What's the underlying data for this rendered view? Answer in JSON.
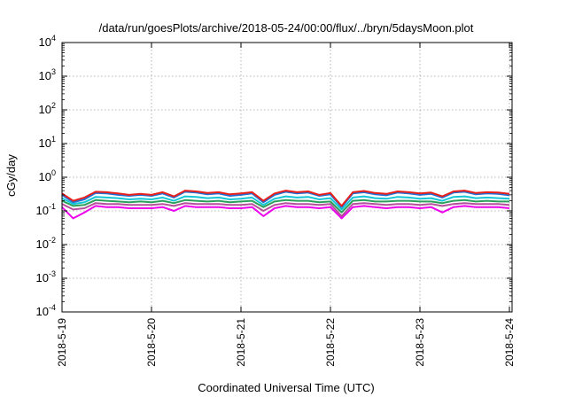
{
  "chart_data": {
    "type": "line",
    "title": "/data/run/goesPlots/archive/2018-05-24/00:00/flux/../bryn/5daysMoon.plot",
    "xlabel": "Coordinated Universal Time (UTC)",
    "ylabel": "cGy/day",
    "yscale": "log",
    "ylim": [
      0.0001,
      10000
    ],
    "xlim": [
      "2018-05-19",
      "2018-05-24"
    ],
    "grid": true,
    "x_ticks": [
      "2018-5-19",
      "2018-5-20",
      "2018-5-21",
      "2018-5-22",
      "2018-5-23",
      "2018-5-24"
    ],
    "y_ticks": [
      {
        "base": "10",
        "exp": "4"
      },
      {
        "base": "10",
        "exp": "3"
      },
      {
        "base": "10",
        "exp": "2"
      },
      {
        "base": "10",
        "exp": "1"
      },
      {
        "base": "10",
        "exp": "0"
      },
      {
        "base": "10",
        "exp": "-1"
      },
      {
        "base": "10",
        "exp": "-2"
      },
      {
        "base": "10",
        "exp": "-3"
      },
      {
        "base": "10",
        "exp": "-4"
      }
    ],
    "x": [
      "2018-05-19 00:00",
      "2018-05-19 03:00",
      "2018-05-19 06:00",
      "2018-05-19 09:00",
      "2018-05-19 12:00",
      "2018-05-19 15:00",
      "2018-05-19 18:00",
      "2018-05-19 21:00",
      "2018-05-20 00:00",
      "2018-05-20 03:00",
      "2018-05-20 06:00",
      "2018-05-20 09:00",
      "2018-05-20 12:00",
      "2018-05-20 15:00",
      "2018-05-20 18:00",
      "2018-05-20 21:00",
      "2018-05-21 00:00",
      "2018-05-21 03:00",
      "2018-05-21 06:00",
      "2018-05-21 09:00",
      "2018-05-21 12:00",
      "2018-05-21 15:00",
      "2018-05-21 18:00",
      "2018-05-21 21:00",
      "2018-05-22 00:00",
      "2018-05-22 03:00",
      "2018-05-22 06:00",
      "2018-05-22 09:00",
      "2018-05-22 12:00",
      "2018-05-22 15:00",
      "2018-05-22 18:00",
      "2018-05-22 21:00",
      "2018-05-23 00:00",
      "2018-05-23 03:00",
      "2018-05-23 06:00",
      "2018-05-23 09:00",
      "2018-05-23 12:00",
      "2018-05-23 15:00",
      "2018-05-23 18:00",
      "2018-05-23 21:00",
      "2018-05-24 00:00"
    ],
    "series": [
      {
        "color": "#e8201b",
        "values": [
          0.33,
          0.2,
          0.25,
          0.37,
          0.36,
          0.33,
          0.3,
          0.32,
          0.3,
          0.36,
          0.27,
          0.4,
          0.38,
          0.34,
          0.36,
          0.31,
          0.33,
          0.36,
          0.2,
          0.33,
          0.4,
          0.36,
          0.38,
          0.3,
          0.34,
          0.14,
          0.36,
          0.39,
          0.34,
          0.32,
          0.38,
          0.36,
          0.33,
          0.35,
          0.27,
          0.38,
          0.4,
          0.34,
          0.36,
          0.35,
          0.32
        ]
      },
      {
        "color": "#1f6fd6",
        "values": [
          0.3,
          0.18,
          0.22,
          0.34,
          0.33,
          0.3,
          0.28,
          0.3,
          0.28,
          0.33,
          0.25,
          0.37,
          0.35,
          0.31,
          0.33,
          0.28,
          0.3,
          0.33,
          0.18,
          0.3,
          0.37,
          0.33,
          0.35,
          0.28,
          0.31,
          0.13,
          0.33,
          0.36,
          0.31,
          0.29,
          0.35,
          0.33,
          0.3,
          0.32,
          0.25,
          0.35,
          0.37,
          0.31,
          0.33,
          0.32,
          0.29
        ]
      },
      {
        "color": "#13c7d6",
        "values": [
          0.24,
          0.16,
          0.18,
          0.26,
          0.25,
          0.24,
          0.22,
          0.23,
          0.22,
          0.25,
          0.2,
          0.27,
          0.26,
          0.24,
          0.25,
          0.22,
          0.23,
          0.25,
          0.15,
          0.23,
          0.27,
          0.25,
          0.26,
          0.22,
          0.24,
          0.11,
          0.25,
          0.27,
          0.24,
          0.23,
          0.26,
          0.25,
          0.23,
          0.24,
          0.2,
          0.26,
          0.27,
          0.24,
          0.25,
          0.24,
          0.23
        ]
      },
      {
        "color": "#2ca05a",
        "values": [
          0.2,
          0.14,
          0.15,
          0.21,
          0.2,
          0.19,
          0.18,
          0.19,
          0.18,
          0.2,
          0.17,
          0.21,
          0.2,
          0.19,
          0.2,
          0.18,
          0.19,
          0.2,
          0.13,
          0.19,
          0.21,
          0.2,
          0.2,
          0.18,
          0.19,
          0.09,
          0.2,
          0.21,
          0.19,
          0.19,
          0.2,
          0.2,
          0.19,
          0.19,
          0.17,
          0.2,
          0.21,
          0.19,
          0.2,
          0.19,
          0.19
        ]
      },
      {
        "color": "#b5509a",
        "values": [
          0.16,
          0.11,
          0.12,
          0.17,
          0.16,
          0.16,
          0.15,
          0.15,
          0.15,
          0.16,
          0.14,
          0.17,
          0.16,
          0.16,
          0.16,
          0.15,
          0.15,
          0.16,
          0.1,
          0.15,
          0.17,
          0.16,
          0.16,
          0.15,
          0.16,
          0.07,
          0.16,
          0.17,
          0.16,
          0.15,
          0.16,
          0.16,
          0.15,
          0.16,
          0.14,
          0.16,
          0.17,
          0.16,
          0.16,
          0.16,
          0.15
        ]
      },
      {
        "color": "#ee00ee",
        "values": [
          0.13,
          0.06,
          0.09,
          0.14,
          0.13,
          0.13,
          0.12,
          0.12,
          0.12,
          0.13,
          0.1,
          0.14,
          0.13,
          0.13,
          0.13,
          0.12,
          0.12,
          0.13,
          0.07,
          0.12,
          0.14,
          0.13,
          0.13,
          0.12,
          0.13,
          0.06,
          0.13,
          0.14,
          0.13,
          0.12,
          0.13,
          0.13,
          0.12,
          0.13,
          0.09,
          0.13,
          0.14,
          0.13,
          0.13,
          0.13,
          0.12
        ]
      }
    ]
  }
}
